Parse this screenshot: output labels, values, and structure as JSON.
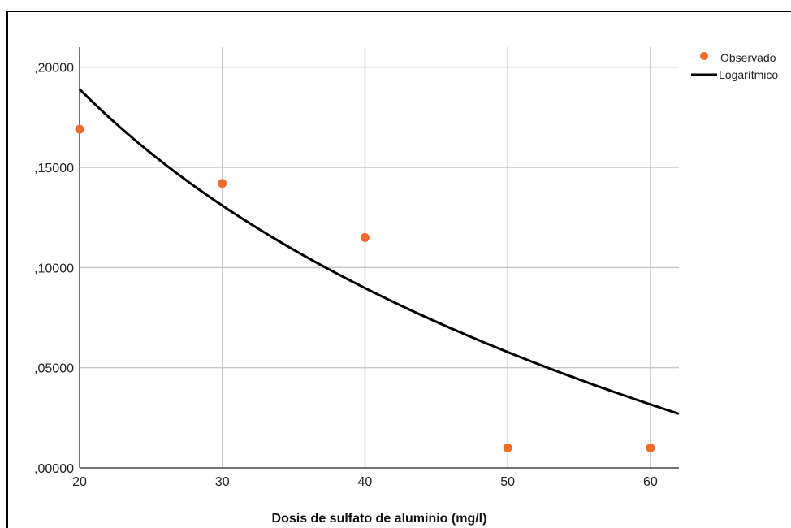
{
  "chart_data": {
    "type": "scatter",
    "title": "",
    "xlabel": "Dosis de sulfato de aluminio (mg/l)",
    "ylabel": "",
    "xlim": [
      20,
      62
    ],
    "ylim": [
      0,
      0.2
    ],
    "x_ticks": [
      20,
      30,
      40,
      50,
      60
    ],
    "x_tick_labels": [
      "20",
      "30",
      "40",
      "50",
      "60"
    ],
    "y_ticks": [
      0,
      0.05,
      0.1,
      0.15,
      0.2
    ],
    "y_tick_labels": [
      ",00000",
      ",05000",
      ",10000",
      ",15000",
      ",20000"
    ],
    "grid": true,
    "legend_position": "top-right",
    "series": [
      {
        "name": "Observado",
        "type": "scatter",
        "color": "#f26b2a",
        "x": [
          20,
          30,
          40,
          50,
          60
        ],
        "y": [
          0.169,
          0.142,
          0.115,
          0.01,
          0.01
        ]
      },
      {
        "name": "Logarítmico",
        "type": "line",
        "color": "#000000",
        "model": "logarithmic",
        "coefficients": {
          "a": 0.618,
          "b": -0.1432
        },
        "x_range": [
          20,
          62
        ]
      }
    ]
  }
}
